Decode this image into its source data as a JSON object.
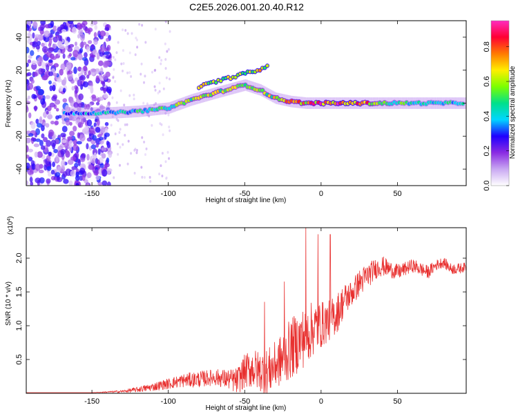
{
  "chart_data": [
    {
      "type": "heatmap",
      "title": "C2E5.2026.001.20.40.R12",
      "xlabel": "Height of straight line (km)",
      "ylabel": "Frequency (Hz)",
      "xlim": [
        -193,
        95
      ],
      "ylim": [
        -50,
        50
      ],
      "xticks": [
        -150,
        -100,
        -50,
        0,
        50
      ],
      "yticks": [
        -40,
        -20,
        0,
        20,
        40
      ],
      "colorbar": {
        "label": "Normalized spectral amplitude",
        "range": [
          0,
          0.95
        ],
        "ticks": [
          0.0,
          0.2,
          0.4,
          0.6,
          0.8
        ],
        "colormap": [
          "#ffffff",
          "#c9a8f2",
          "#8a2be2",
          "#1f00ff",
          "#00d6ff",
          "#00e08a",
          "#7cff00",
          "#ffee00",
          "#ff7a00",
          "#ff0033",
          "#ff2bbf"
        ]
      },
      "ridge": {
        "description": "dominant signal trace",
        "x": [
          -168,
          -140,
          -120,
          -100,
          -85,
          -70,
          -50,
          -40,
          -30,
          -20,
          -10,
          0,
          20,
          40,
          60,
          80,
          94
        ],
        "frequency": [
          -6,
          -6,
          -5,
          -3,
          2,
          6,
          11,
          8,
          3,
          1,
          0,
          0,
          0,
          0,
          0,
          0,
          0
        ],
        "amplitude": [
          0.35,
          0.4,
          0.45,
          0.5,
          0.6,
          0.65,
          0.55,
          0.6,
          0.65,
          0.7,
          0.75,
          0.8,
          0.9,
          0.55,
          0.45,
          0.45,
          0.4
        ]
      },
      "secondary_ridge": {
        "x": [
          -80,
          -65,
          -50,
          -40,
          -35
        ],
        "frequency": [
          10,
          14,
          18,
          20,
          23
        ]
      },
      "noise_region": {
        "x_range": [
          -193,
          -138
        ],
        "frequency_range": [
          -50,
          50
        ]
      }
    },
    {
      "type": "line",
      "xlabel": "Height of straight line (km)",
      "ylabel": "SNR (10 * v/v)",
      "scale_label_base": "(x10",
      "scale_label_exp": "4",
      "scale_label_close": ")",
      "xlim": [
        -193,
        95
      ],
      "ylim": [
        0,
        2.45
      ],
      "xticks": [
        -150,
        -100,
        -50,
        0,
        50
      ],
      "yticks": [
        0.5,
        1.0,
        1.5,
        2.0
      ],
      "ytick_labels": [
        "0.5",
        "1.0",
        "1.5",
        "2.0"
      ],
      "series": [
        {
          "name": "SNR",
          "color": "#e8302f",
          "x": [
            -193,
            -170,
            -150,
            -140,
            -130,
            -120,
            -110,
            -100,
            -90,
            -80,
            -70,
            -60,
            -55,
            -50,
            -45,
            -40,
            -35,
            -30,
            -25,
            -20,
            -15,
            -10,
            -5,
            0,
            5,
            10,
            15,
            20,
            25,
            30,
            35,
            40,
            45,
            50,
            55,
            60,
            65,
            70,
            75,
            80,
            85,
            90,
            95
          ],
          "values": [
            0.01,
            0.01,
            0.01,
            0.02,
            0.03,
            0.06,
            0.1,
            0.15,
            0.2,
            0.22,
            0.25,
            0.22,
            0.2,
            0.35,
            0.4,
            0.35,
            0.35,
            0.45,
            0.55,
            0.7,
            0.8,
            0.9,
            1.0,
            1.05,
            1.1,
            1.2,
            1.4,
            1.5,
            1.65,
            1.75,
            1.85,
            1.9,
            1.85,
            1.8,
            1.85,
            1.9,
            1.85,
            1.8,
            1.9,
            1.95,
            1.85,
            1.85,
            1.88
          ],
          "spikes": [
            {
              "x": -37,
              "value": 1.35
            },
            {
              "x": -24,
              "value": 1.65
            },
            {
              "x": -10,
              "value": 2.45
            },
            {
              "x": -2,
              "value": 2.35
            },
            {
              "x": 6,
              "value": 2.35
            }
          ],
          "noise_amplitude": [
            0.0,
            0.0,
            0.0,
            0.01,
            0.02,
            0.04,
            0.06,
            0.08,
            0.1,
            0.12,
            0.12,
            0.15,
            0.2,
            0.25,
            0.3,
            0.3,
            0.35,
            0.35,
            0.4,
            0.45,
            0.45,
            0.45,
            0.4,
            0.35,
            0.3,
            0.3,
            0.25,
            0.2,
            0.2,
            0.2,
            0.15,
            0.15,
            0.12,
            0.12,
            0.1,
            0.1,
            0.1,
            0.1,
            0.08,
            0.08,
            0.08,
            0.08,
            0.06
          ]
        }
      ]
    }
  ]
}
